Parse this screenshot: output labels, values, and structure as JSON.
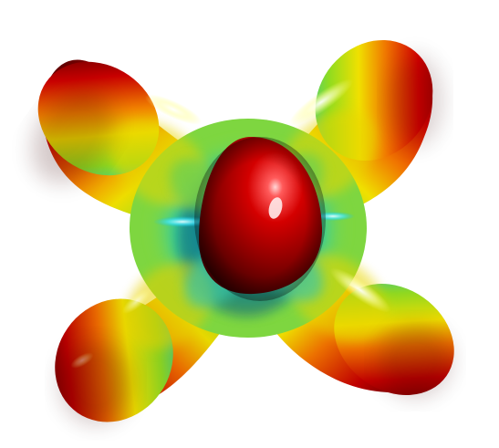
{
  "scene": {
    "background": "#ffffff",
    "subject": "3d-orbital-surface",
    "colormap": [
      "#5a0000",
      "#c00000",
      "#e83a00",
      "#f0a000",
      "#f2e600",
      "#9fe000",
      "#2fd07a",
      "#10b8c8",
      "#1a8cd8"
    ]
  }
}
